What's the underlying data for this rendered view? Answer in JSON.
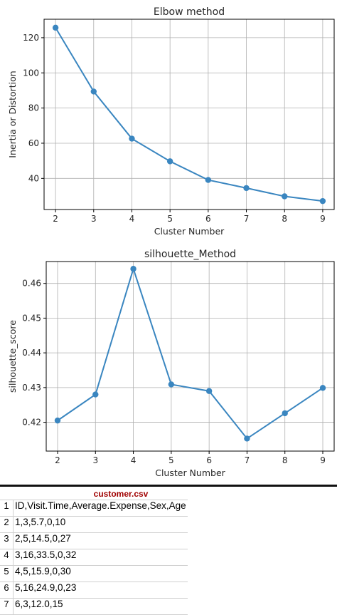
{
  "chart_data": [
    {
      "type": "line",
      "title": "Elbow method",
      "xlabel": "Cluster Number",
      "ylabel": "Inertia or Distortion",
      "x": [
        2,
        3,
        4,
        5,
        6,
        7,
        8,
        9
      ],
      "y": [
        125.7,
        89.4,
        62.6,
        49.7,
        39.1,
        34.5,
        29.8,
        27.1
      ],
      "xlim": [
        1.7,
        9.3
      ],
      "ylim": [
        22.3,
        130.5
      ],
      "xticks": [
        2,
        3,
        4,
        5,
        6,
        7,
        8,
        9
      ],
      "yticks": [
        40,
        60,
        80,
        100,
        120
      ],
      "grid": true,
      "color": "#3a86c0",
      "markers": true
    },
    {
      "type": "line",
      "title": "silhouette_Method",
      "xlabel": "Cluster Number",
      "ylabel": "silhouette_score",
      "x": [
        2,
        3,
        4,
        5,
        6,
        7,
        8,
        9
      ],
      "y": [
        0.4205,
        0.428,
        0.4642,
        0.4309,
        0.429,
        0.4153,
        0.4226,
        0.4299
      ],
      "xlim": [
        1.7,
        9.3
      ],
      "ylim": [
        0.4117,
        0.4663
      ],
      "xticks": [
        2,
        3,
        4,
        5,
        6,
        7,
        8,
        9
      ],
      "yticks": [
        0.42,
        0.43,
        0.44,
        0.45,
        0.46
      ],
      "grid": true,
      "color": "#3a86c0",
      "markers": true
    }
  ],
  "csv": {
    "title": "customer.csv",
    "rows": [
      {
        "n": "1",
        "text": "ID,Visit.Time,Average.Expense,Sex,Age"
      },
      {
        "n": "2",
        "text": "1,3,5.7,0,10"
      },
      {
        "n": "3",
        "text": "2,5,14.5,0,27"
      },
      {
        "n": "4",
        "text": "3,16,33.5,0,32"
      },
      {
        "n": "5",
        "text": "4,5,15.9,0,30"
      },
      {
        "n": "6",
        "text": "5,16,24.9,0,23"
      },
      {
        "n": "7",
        "text": "6,3,12.0,15"
      }
    ]
  }
}
